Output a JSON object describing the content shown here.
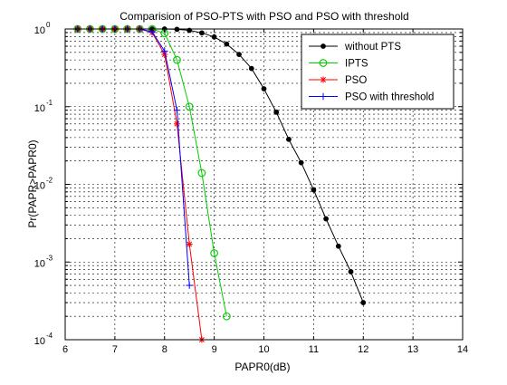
{
  "chart_data": {
    "type": "line",
    "title": "Comparision of PSO-PTS with PSO and PSO with threshold",
    "xlabel": "PAPR0(dB)",
    "ylabel": "Pr(PAPR>PAPR0)",
    "xlim": [
      6,
      14
    ],
    "ylim": [
      0.0001,
      1
    ],
    "yscale": "log",
    "grid": true,
    "legend_position": "top-right",
    "xticks": [
      "6",
      "7",
      "8",
      "9",
      "10",
      "11",
      "12",
      "13",
      "14"
    ],
    "yticks": [
      {
        "base": "10",
        "exp": "0"
      },
      {
        "base": "10",
        "exp": "-1"
      },
      {
        "base": "10",
        "exp": "-2"
      },
      {
        "base": "10",
        "exp": "-3"
      },
      {
        "base": "10",
        "exp": "-4"
      }
    ],
    "series": [
      {
        "name": "without PTS",
        "color": "#000000",
        "marker": "dot",
        "x": [
          6.25,
          6.5,
          6.75,
          7.0,
          7.25,
          7.5,
          7.75,
          8.0,
          8.25,
          8.5,
          8.75,
          9.0,
          9.25,
          9.5,
          9.75,
          10.0,
          10.25,
          10.5,
          10.75,
          11.0,
          11.25,
          11.5,
          11.75,
          12.0
        ],
        "y": [
          1,
          1,
          1,
          1,
          1,
          1,
          1,
          1,
          0.99,
          0.96,
          0.89,
          0.79,
          0.64,
          0.47,
          0.31,
          0.17,
          0.085,
          0.038,
          0.019,
          0.0085,
          0.0036,
          0.0016,
          0.00075,
          0.0003
        ]
      },
      {
        "name": "IPTS",
        "color": "#00cc00",
        "marker": "circle",
        "x": [
          6.25,
          6.5,
          6.75,
          7.0,
          7.25,
          7.5,
          7.75,
          8.0,
          8.25,
          8.5,
          8.75,
          9.0,
          9.25
        ],
        "y": [
          1,
          1,
          1,
          1,
          1,
          1,
          1,
          0.88,
          0.4,
          0.1,
          0.014,
          0.0013,
          0.0002
        ]
      },
      {
        "name": "PSO",
        "color": "#ff0000",
        "marker": "star",
        "x": [
          6.25,
          6.5,
          6.75,
          7.0,
          7.25,
          7.5,
          7.75,
          8.0,
          8.25,
          8.5,
          8.75
        ],
        "y": [
          1,
          1,
          1,
          1,
          1,
          1,
          0.9,
          0.47,
          0.06,
          0.0017,
          0.0001
        ]
      },
      {
        "name": "PSO with threshold",
        "color": "#0000ff",
        "marker": "plus",
        "x": [
          6.25,
          6.5,
          6.75,
          7.0,
          7.25,
          7.5,
          7.75,
          8.0,
          8.25,
          8.5
        ],
        "y": [
          1,
          1,
          1,
          1,
          1,
          1,
          0.92,
          0.52,
          0.09,
          0.0005
        ]
      }
    ]
  }
}
